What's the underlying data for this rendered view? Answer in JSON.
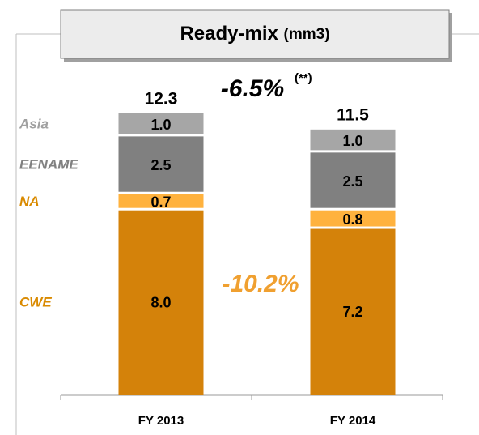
{
  "chart_data": {
    "type": "stacked_bar",
    "title": "Ready-mix",
    "title_unit": "(mm3)",
    "categories": [
      "FY 2013",
      "FY 2014"
    ],
    "series": [
      {
        "name": "CWE",
        "color": "#d4820a",
        "label_color": "#d98a00",
        "values": [
          8.0,
          7.2
        ],
        "value_labels": [
          "8.0",
          "7.2"
        ]
      },
      {
        "name": "NA",
        "color": "#ffb23e",
        "label_color": "#d98a00",
        "values": [
          0.7,
          0.8
        ],
        "value_labels": [
          "0.7",
          "0.8"
        ]
      },
      {
        "name": "EENAME",
        "color": "#808080",
        "label_color": "#808080",
        "values": [
          2.5,
          2.5
        ],
        "value_labels": [
          "2.5",
          "2.5"
        ]
      },
      {
        "name": "Asia",
        "color": "#a6a6a6",
        "label_color": "#a0a0a0",
        "values": [
          1.0,
          1.0
        ],
        "value_labels": [
          "1.0",
          "1.0"
        ]
      }
    ],
    "totals": [
      12.3,
      11.5
    ],
    "annotations": {
      "total_change": "-6.5%",
      "total_change_note": "(**)",
      "cwe_change": "-10.2%"
    }
  }
}
